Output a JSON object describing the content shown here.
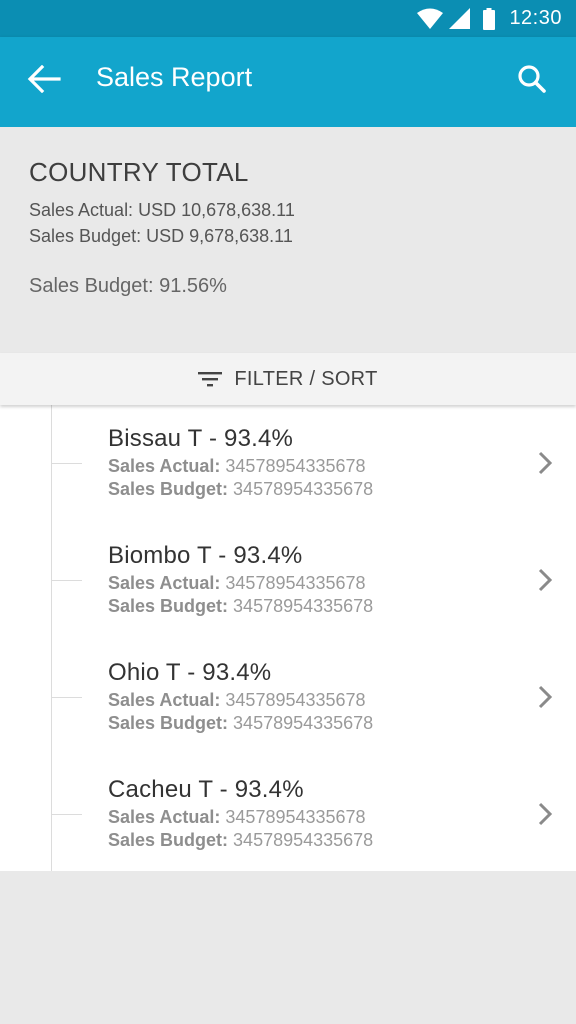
{
  "status_bar": {
    "time": "12:30",
    "icons": [
      "wifi-icon",
      "signal-icon",
      "battery-icon"
    ]
  },
  "app_bar": {
    "title": "Sales Report",
    "back_icon": "arrow-back-icon",
    "search_icon": "search-icon"
  },
  "summary": {
    "title": "COUNTRY TOTAL",
    "actual_line": "Sales Actual: USD 10,678,638.11",
    "budget_line": "Sales Budget: USD 9,678,638.11",
    "budget_pct_line": "Sales Budget: 91.56%"
  },
  "filter": {
    "label": "FILTER / SORT",
    "icon": "filter-list-icon"
  },
  "items": [
    {
      "title": "Bissau T - 93.4%",
      "actual_label": "Sales Actual:",
      "actual_value": "34578954335678",
      "budget_label": "Sales Budget:",
      "budget_value": "34578954335678"
    },
    {
      "title": "Biombo T - 93.4%",
      "actual_label": "Sales Actual:",
      "actual_value": "34578954335678",
      "budget_label": "Sales Budget:",
      "budget_value": "34578954335678"
    },
    {
      "title": "Ohio T - 93.4%",
      "actual_label": "Sales Actual:",
      "actual_value": "34578954335678",
      "budget_label": "Sales Budget:",
      "budget_value": "34578954335678"
    },
    {
      "title": "Cacheu T - 93.4%",
      "actual_label": "Sales Actual:",
      "actual_value": "34578954335678",
      "budget_label": "Sales Budget:",
      "budget_value": "34578954335678"
    }
  ],
  "colors": {
    "status_bar": "#0b8eb3",
    "app_bar": "#12a5cc",
    "background": "#e9e9e9"
  }
}
